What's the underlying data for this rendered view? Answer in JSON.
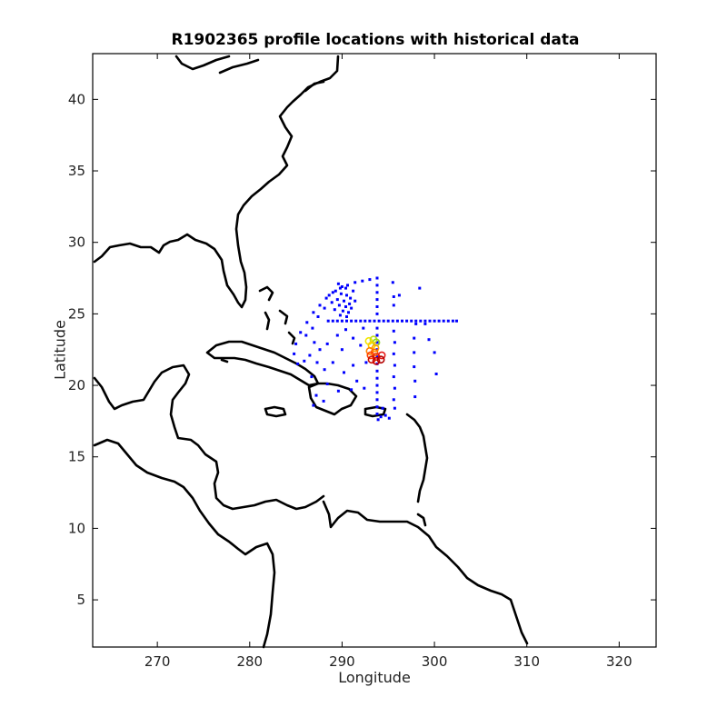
{
  "title": "R1902365 profile locations with historical data",
  "xlabel": "Longitude",
  "ylabel": "Latitude",
  "chart_data": {
    "type": "scatter",
    "xlim": [
      263,
      324
    ],
    "ylim": [
      1.7,
      43.2
    ],
    "xticks": [
      270,
      280,
      290,
      300,
      310,
      320
    ],
    "yticks": [
      5,
      10,
      15,
      20,
      25,
      30,
      35,
      40
    ],
    "xtick_labels": [
      "270",
      "280",
      "290",
      "300",
      "310",
      "320"
    ],
    "ytick_labels": [
      "5",
      "10",
      "15",
      "20",
      "25",
      "30",
      "35",
      "40"
    ],
    "grid": false,
    "coastline_color": "#000000",
    "historical_color": "#0000ff",
    "historical_points": [
      [
        293.8,
        27.5
      ],
      [
        293.0,
        27.4
      ],
      [
        292.2,
        27.3
      ],
      [
        291.4,
        27.2
      ],
      [
        290.6,
        27.0
      ],
      [
        289.8,
        26.8
      ],
      [
        289.0,
        26.5
      ],
      [
        288.3,
        26.1
      ],
      [
        287.6,
        25.6
      ],
      [
        286.9,
        25.1
      ],
      [
        286.2,
        24.4
      ],
      [
        285.5,
        23.7
      ],
      [
        285.0,
        22.9
      ],
      [
        284.8,
        22.2
      ],
      [
        285.2,
        21.5
      ],
      [
        289.6,
        27.1
      ],
      [
        290.0,
        26.9
      ],
      [
        290.4,
        26.8
      ],
      [
        289.3,
        26.6
      ],
      [
        289.9,
        26.4
      ],
      [
        290.5,
        26.3
      ],
      [
        290.9,
        26.1
      ],
      [
        289.5,
        26.0
      ],
      [
        290.2,
        25.9
      ],
      [
        290.8,
        25.7
      ],
      [
        289.7,
        25.6
      ],
      [
        290.4,
        25.5
      ],
      [
        291.0,
        25.4
      ],
      [
        289.2,
        25.3
      ],
      [
        290.1,
        25.2
      ],
      [
        290.7,
        25.1
      ],
      [
        289.8,
        24.9
      ],
      [
        290.5,
        24.8
      ],
      [
        291.2,
        26.6
      ],
      [
        288.9,
        25.8
      ],
      [
        291.4,
        25.9
      ],
      [
        288.5,
        24.5
      ],
      [
        289.0,
        24.5
      ],
      [
        289.5,
        24.5
      ],
      [
        290.0,
        24.5
      ],
      [
        290.5,
        24.5
      ],
      [
        291.0,
        24.5
      ],
      [
        291.5,
        24.5
      ],
      [
        292.0,
        24.5
      ],
      [
        292.5,
        24.5
      ],
      [
        293.0,
        24.5
      ],
      [
        293.5,
        24.5
      ],
      [
        294.0,
        24.5
      ],
      [
        294.5,
        24.5
      ],
      [
        295.0,
        24.5
      ],
      [
        295.5,
        24.5
      ],
      [
        296.0,
        24.5
      ],
      [
        296.5,
        24.5
      ],
      [
        297.0,
        24.5
      ],
      [
        297.5,
        24.5
      ],
      [
        298.0,
        24.5
      ],
      [
        298.5,
        24.5
      ],
      [
        299.0,
        24.5
      ],
      [
        299.5,
        24.5
      ],
      [
        300.0,
        24.5
      ],
      [
        300.5,
        24.5
      ],
      [
        301.0,
        24.5
      ],
      [
        301.5,
        24.5
      ],
      [
        302.0,
        24.5
      ],
      [
        302.4,
        24.5
      ],
      [
        293.8,
        27.0
      ],
      [
        293.8,
        26.5
      ],
      [
        293.8,
        26.0
      ],
      [
        293.8,
        25.5
      ],
      [
        293.8,
        25.0
      ],
      [
        293.8,
        24.0
      ],
      [
        293.8,
        23.5
      ],
      [
        293.8,
        23.0
      ],
      [
        293.8,
        22.5
      ],
      [
        293.8,
        22.0
      ],
      [
        293.8,
        21.5
      ],
      [
        293.8,
        21.0
      ],
      [
        293.8,
        20.5
      ],
      [
        293.8,
        20.0
      ],
      [
        293.8,
        19.5
      ],
      [
        293.8,
        19.0
      ],
      [
        293.8,
        18.5
      ],
      [
        293.8,
        18.0
      ],
      [
        293.9,
        17.6
      ],
      [
        294.4,
        18.4
      ],
      [
        294.7,
        17.9
      ],
      [
        295.1,
        17.7
      ],
      [
        294.2,
        17.8
      ],
      [
        295.5,
        27.2
      ],
      [
        295.6,
        26.2
      ],
      [
        295.6,
        25.6
      ],
      [
        295.6,
        23.8
      ],
      [
        295.7,
        23.0
      ],
      [
        295.6,
        22.2
      ],
      [
        295.7,
        21.4
      ],
      [
        295.6,
        20.6
      ],
      [
        295.7,
        19.8
      ],
      [
        295.6,
        19.0
      ],
      [
        295.7,
        18.4
      ],
      [
        296.2,
        26.3
      ],
      [
        298.0,
        24.3
      ],
      [
        297.8,
        23.3
      ],
      [
        297.8,
        22.3
      ],
      [
        297.8,
        21.3
      ],
      [
        297.9,
        20.3
      ],
      [
        297.9,
        19.2
      ],
      [
        299.0,
        24.3
      ],
      [
        299.4,
        23.2
      ],
      [
        300.0,
        22.3
      ],
      [
        298.4,
        26.8
      ],
      [
        300.2,
        20.8
      ],
      [
        288.6,
        26.3
      ],
      [
        288.1,
        25.4
      ],
      [
        287.4,
        24.8
      ],
      [
        286.8,
        24.0
      ],
      [
        286.1,
        23.5
      ],
      [
        287.0,
        23.0
      ],
      [
        286.5,
        22.1
      ],
      [
        285.9,
        21.7
      ],
      [
        287.6,
        22.5
      ],
      [
        288.4,
        22.9
      ],
      [
        287.3,
        21.6
      ],
      [
        288.1,
        21.1
      ],
      [
        289.0,
        21.6
      ],
      [
        286.7,
        20.6
      ],
      [
        288.4,
        20.1
      ],
      [
        289.6,
        19.6
      ],
      [
        290.2,
        20.9
      ],
      [
        291.0,
        19.7
      ],
      [
        291.6,
        20.3
      ],
      [
        292.4,
        19.8
      ],
      [
        291.2,
        21.4
      ],
      [
        292.6,
        21.6
      ],
      [
        290.0,
        22.5
      ],
      [
        291.2,
        23.3
      ],
      [
        292.0,
        22.8
      ],
      [
        292.3,
        24.0
      ],
      [
        289.5,
        23.5
      ],
      [
        290.4,
        23.9
      ],
      [
        287.2,
        19.3
      ],
      [
        288.0,
        18.9
      ],
      [
        286.9,
        18.6
      ]
    ],
    "profile_points": [
      {
        "lon": 292.9,
        "lat": 23.1,
        "color": "#f2e600"
      },
      {
        "lon": 293.4,
        "lat": 23.2,
        "color": "#bfe01a"
      },
      {
        "lon": 293.7,
        "lat": 23.0,
        "color": "#8fd61f"
      },
      {
        "lon": 293.2,
        "lat": 22.8,
        "color": "#ffcc00"
      },
      {
        "lon": 293.6,
        "lat": 22.6,
        "color": "#ffa000"
      },
      {
        "lon": 293.0,
        "lat": 22.4,
        "color": "#ff8000"
      },
      {
        "lon": 293.5,
        "lat": 22.3,
        "color": "#ff6600"
      },
      {
        "lon": 293.1,
        "lat": 22.1,
        "color": "#ff4000"
      },
      {
        "lon": 293.7,
        "lat": 22.0,
        "color": "#e62e00"
      },
      {
        "lon": 294.3,
        "lat": 22.1,
        "color": "#e61a1a"
      },
      {
        "lon": 293.2,
        "lat": 21.8,
        "color": "#cc1100"
      },
      {
        "lon": 293.7,
        "lat": 21.7,
        "color": "#cc0000"
      },
      {
        "lon": 294.2,
        "lat": 21.8,
        "color": "#b30000"
      }
    ]
  }
}
